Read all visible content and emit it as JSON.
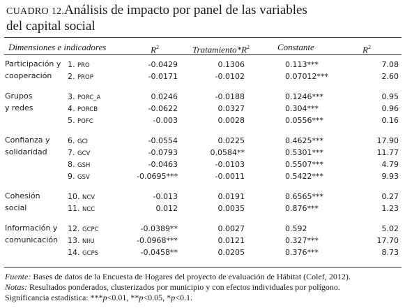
{
  "title": {
    "number": "CUADRO 12.",
    "line1": "Análisis de impacto por panel de las variables",
    "line2": "del capital social"
  },
  "header": {
    "dims": "Dimensiones e indicadores",
    "r2_base": "R",
    "r2_sup": "2",
    "trat_base": "Tratamiento*R",
    "trat_sup": "2",
    "constante": "Constante",
    "r2b_base": "R",
    "r2b_sup": "2"
  },
  "groups": [
    {
      "line1": "Participación y",
      "line2": "cooperación"
    },
    {
      "line1": "Grupos",
      "line2": "y redes"
    },
    {
      "line1": "Confianza y",
      "line2": "solidaridad"
    },
    {
      "line1": "Cohesión",
      "line2": "social"
    },
    {
      "line1": "Información y",
      "line2": "comunicación"
    }
  ],
  "rows": [
    {
      "num": "1.",
      "code": "PRO",
      "r2": "-0.0429",
      "trat": "0.1306",
      "const": "0.113***",
      "r2b": "7.08"
    },
    {
      "num": "2.",
      "code": "PROP",
      "r2": "-0.0171",
      "trat": "-0.0102",
      "const": "0.07012***",
      "r2b": "2.60"
    },
    {
      "num": "3.",
      "code": "PORC_A",
      "r2": "0.0246",
      "trat": "-0.0188",
      "const": "0.1246***",
      "r2b": "0.95"
    },
    {
      "num": "4.",
      "code": "PORCB",
      "r2": "-0.0622",
      "trat": "0.0327",
      "const": "0.304***",
      "r2b": "0.96"
    },
    {
      "num": "5.",
      "code": "POFC",
      "r2": "-0.003",
      "trat": "0.0028",
      "const": "0.0556***",
      "r2b": "0.16"
    },
    {
      "num": "6.",
      "code": "GCI",
      "r2": "-0.0554",
      "trat": "0.0225",
      "const": "0.4625***",
      "r2b": "17.90"
    },
    {
      "num": "7.",
      "code": "GCV",
      "r2": "-0.0793",
      "trat": "0.0584**",
      "const": "0.5301***",
      "r2b": "11.77"
    },
    {
      "num": "8.",
      "code": "GSH",
      "r2": "-0.0463",
      "trat": "-0.0103",
      "const": "0.5507***",
      "r2b": "4.79"
    },
    {
      "num": "9.",
      "code": "GSV",
      "r2": "-0.0695***",
      "trat": "-0.0011",
      "const": "0.5422***",
      "r2b": "9.93"
    },
    {
      "num": "10.",
      "code": "NCV",
      "r2": "-0.013",
      "trat": "0.0191",
      "const": "0.6565***",
      "r2b": "0.27"
    },
    {
      "num": "11.",
      "code": "NCC",
      "r2": "0.012",
      "trat": "0.0035",
      "const": "0.876***",
      "r2b": "1.23"
    },
    {
      "num": "12.",
      "code": "GCPC",
      "r2": "-0.0389**",
      "trat": "0.0027",
      "const": "0.592",
      "r2b": "5.02"
    },
    {
      "num": "13.",
      "code": "NIIU",
      "r2": "-0.0968***",
      "trat": "0.0121",
      "const": "0.327***",
      "r2b": "17.70"
    },
    {
      "num": "14.",
      "code": "GCPS",
      "r2": "-0.0458**",
      "trat": "0.0205",
      "const": "0.376***",
      "r2b": "8.73"
    }
  ],
  "footnotes": {
    "fuente_label": "Fuente:",
    "fuente_text": " Bases de datos de la Encuesta de Hogares del proyecto de evaluación de Hábitat (Colef, 2012).",
    "notas_label": "Notas:",
    "notas_text": " Resultados ponderados, clusterizados por municipio y con efectos individuales por polígono.",
    "sig_text1": "Significancia estadística: ***",
    "sig_p1": "p",
    "sig_text2": "<0.01, **",
    "sig_p2": "p",
    "sig_text3": "<0.05, *",
    "sig_p3": "p",
    "sig_text4": "<0.1."
  }
}
